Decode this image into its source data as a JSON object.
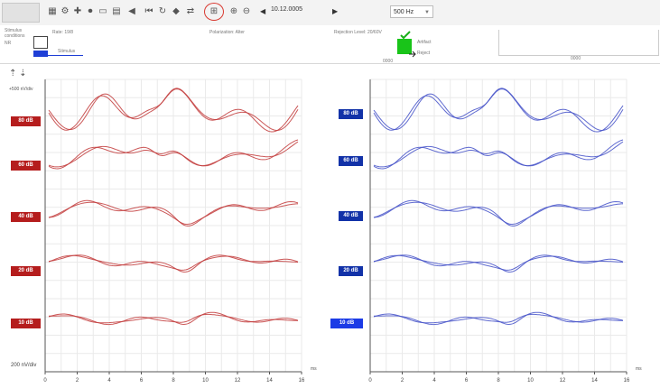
{
  "toolbar": {
    "date_text": "10.12.0005",
    "select_value": "500 Hz",
    "icons": [
      "grid-icon",
      "settings-icon",
      "add-icon",
      "record-icon",
      "window-icon",
      "print-icon",
      "back-icon",
      "rewind-icon",
      "refresh-icon",
      "marker-icon",
      "compare-icon",
      "overlay-icon",
      "zoom-icon",
      "prev-icon",
      "next-icon"
    ]
  },
  "info": {
    "stim_label": "Stimulus",
    "stim_sub": "conditions",
    "rate_label": "Rate: 19/8",
    "polarity_label": "Polarization: Alter",
    "artifact_label": "Rejection Level: 20/60V",
    "stim_box_label": "NR",
    "blue_bar_label": "Stimulus",
    "green_side_top": "Artifact",
    "green_side_bottom": "Reject",
    "green_bottom_label": "0000",
    "mini_label": "0000"
  },
  "left_panel": {
    "scale": "+500 nV/div",
    "bottom_label": "200 nV/div",
    "label_color": "#b51d1d",
    "waveform_color": "#c23a3a",
    "channels": [
      {
        "label": "80 dB"
      },
      {
        "label": "60 dB"
      },
      {
        "label": "40 dB"
      },
      {
        "label": "20 dB"
      },
      {
        "label": "10 dB"
      }
    ]
  },
  "right_panel": {
    "label_color": "#1232a8",
    "waveform_color": "#4350c8",
    "channels": [
      {
        "label": "80 dB"
      },
      {
        "label": "60 dB"
      },
      {
        "label": "40 dB"
      },
      {
        "label": "20 dB"
      },
      {
        "label": "10 dB"
      }
    ]
  },
  "x_axis": {
    "ticks": [
      "0",
      "2",
      "4",
      "6",
      "8",
      "10",
      "12",
      "14",
      "16"
    ],
    "unit": "ms"
  }
}
